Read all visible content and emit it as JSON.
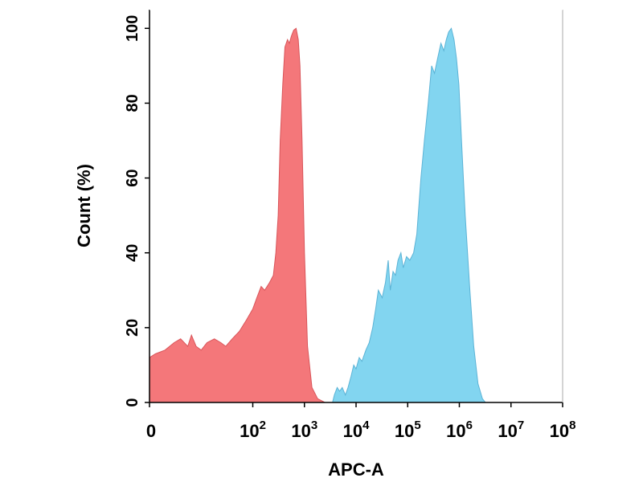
{
  "chart_data": {
    "type": "area",
    "title": "",
    "xlabel": "APC-A",
    "ylabel": "Count  (%)",
    "x_scale": "log",
    "xlim": [
      1,
      100000000
    ],
    "ylim": [
      0,
      105
    ],
    "grid": false,
    "legend": "none",
    "x_tick_labels": [
      {
        "base": "0",
        "exp": ""
      },
      {
        "base": "10",
        "exp": "2"
      },
      {
        "base": "10",
        "exp": "3"
      },
      {
        "base": "10",
        "exp": "4"
      },
      {
        "base": "10",
        "exp": "5"
      },
      {
        "base": "10",
        "exp": "6"
      },
      {
        "base": "10",
        "exp": "7"
      },
      {
        "base": "10",
        "exp": "8"
      }
    ],
    "x_tick_values": [
      1,
      100,
      1000,
      10000,
      100000,
      1000000,
      10000000,
      100000000
    ],
    "y_ticks": [
      0,
      20,
      40,
      60,
      80,
      100
    ],
    "series": [
      {
        "color": "#f4777a",
        "stroke": "#d9555a",
        "points": [
          [
            1,
            12
          ],
          [
            1.3,
            13
          ],
          [
            2,
            14
          ],
          [
            3,
            16
          ],
          [
            4,
            17
          ],
          [
            5.5,
            15
          ],
          [
            6.5,
            18
          ],
          [
            8,
            15
          ],
          [
            10,
            14
          ],
          [
            13,
            16
          ],
          [
            18,
            17
          ],
          [
            24,
            16
          ],
          [
            30,
            15
          ],
          [
            40,
            17
          ],
          [
            55,
            19
          ],
          [
            75,
            22
          ],
          [
            100,
            25
          ],
          [
            120,
            28
          ],
          [
            145,
            31
          ],
          [
            170,
            30
          ],
          [
            210,
            32
          ],
          [
            250,
            34
          ],
          [
            280,
            40
          ],
          [
            310,
            50
          ],
          [
            340,
            70
          ],
          [
            380,
            85
          ],
          [
            420,
            95
          ],
          [
            470,
            97
          ],
          [
            510,
            96
          ],
          [
            560,
            98
          ],
          [
            620,
            99.5
          ],
          [
            690,
            100
          ],
          [
            760,
            97
          ],
          [
            820,
            90
          ],
          [
            900,
            70
          ],
          [
            1000,
            40
          ],
          [
            1150,
            15
          ],
          [
            1400,
            4
          ],
          [
            1800,
            1
          ],
          [
            2500,
            0
          ]
        ]
      },
      {
        "color": "#82d5f0",
        "stroke": "#5bb3d6",
        "points": [
          [
            3500,
            0
          ],
          [
            3800,
            2
          ],
          [
            4300,
            4
          ],
          [
            4800,
            3
          ],
          [
            5400,
            4
          ],
          [
            6200,
            2
          ],
          [
            7000,
            4
          ],
          [
            8000,
            7
          ],
          [
            9000,
            10
          ],
          [
            10000,
            9
          ],
          [
            11500,
            12
          ],
          [
            13000,
            11
          ],
          [
            15500,
            14
          ],
          [
            18000,
            16
          ],
          [
            21000,
            20
          ],
          [
            24000,
            25
          ],
          [
            27000,
            30
          ],
          [
            32000,
            28
          ],
          [
            37000,
            32
          ],
          [
            42000,
            38
          ],
          [
            46000,
            30
          ],
          [
            52000,
            35
          ],
          [
            58000,
            34
          ],
          [
            65000,
            38
          ],
          [
            74000,
            40
          ],
          [
            82000,
            36
          ],
          [
            95000,
            39
          ],
          [
            110000,
            38
          ],
          [
            130000,
            40
          ],
          [
            150000,
            45
          ],
          [
            180000,
            60
          ],
          [
            210000,
            70
          ],
          [
            250000,
            80
          ],
          [
            290000,
            90
          ],
          [
            330000,
            88
          ],
          [
            380000,
            92
          ],
          [
            440000,
            96
          ],
          [
            500000,
            94
          ],
          [
            560000,
            97
          ],
          [
            620000,
            99
          ],
          [
            700000,
            100
          ],
          [
            790000,
            97
          ],
          [
            880000,
            92
          ],
          [
            980000,
            85
          ],
          [
            1100000,
            70
          ],
          [
            1300000,
            50
          ],
          [
            1600000,
            30
          ],
          [
            1900000,
            15
          ],
          [
            2300000,
            5
          ],
          [
            2800000,
            1
          ],
          [
            3200000,
            0
          ]
        ]
      }
    ]
  }
}
